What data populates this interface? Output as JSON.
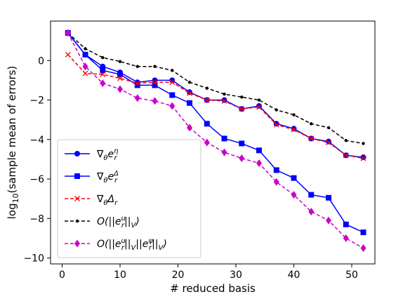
{
  "chart_data": {
    "type": "line",
    "title": "",
    "xlabel": "# reduced basis",
    "ylabel": "log10(sample mean of errors)",
    "xlim": [
      -2,
      54
    ],
    "ylim": [
      -10.3,
      2.0
    ],
    "xticks": [
      0,
      10,
      20,
      30,
      40,
      50
    ],
    "yticks": [
      0,
      -2,
      -4,
      -6,
      -8,
      -10
    ],
    "xtick_labels": [
      "0",
      "10",
      "20",
      "30",
      "40",
      "50"
    ],
    "ytick_labels": [
      "0",
      "−2",
      "−4",
      "−6",
      "−8",
      "−10"
    ],
    "legend_position": "bottom-left",
    "x": [
      1,
      4,
      7,
      10,
      13,
      16,
      19,
      22,
      25,
      28,
      31,
      34,
      37,
      40,
      43,
      46,
      49,
      52
    ],
    "series": [
      {
        "name": "∇θ e_r^η",
        "color": "#0000ff",
        "marker": "circle",
        "dash": "solid",
        "values": [
          1.4,
          0.3,
          -0.3,
          -0.6,
          -1.1,
          -1.0,
          -1.0,
          -1.6,
          -2.0,
          -2.0,
          -2.45,
          -2.3,
          -3.2,
          -3.45,
          -3.95,
          -4.1,
          -4.8,
          -4.9
        ]
      },
      {
        "name": "∇θ e_r^Δ",
        "color": "#0000ff",
        "marker": "square",
        "dash": "solid",
        "values": [
          1.4,
          0.3,
          -0.5,
          -0.7,
          -1.25,
          -1.25,
          -1.75,
          -2.15,
          -3.2,
          -3.95,
          -4.2,
          -4.55,
          -5.55,
          -5.95,
          -6.8,
          -6.95,
          -8.3,
          -8.7
        ]
      },
      {
        "name": "∇θ Δ_r",
        "color": "#ff0000",
        "marker": "x",
        "dash": "dashed",
        "values": [
          0.3,
          -0.65,
          -0.7,
          -0.9,
          -1.15,
          -1.1,
          -1.1,
          -1.65,
          -2.0,
          -2.05,
          -2.45,
          -2.35,
          -3.25,
          -3.5,
          -3.95,
          -4.15,
          -4.8,
          -4.95
        ]
      },
      {
        "name": "O(||e_r^u||_V)",
        "color": "#000000",
        "marker": "dot",
        "dash": "dashed",
        "values": [
          1.4,
          0.6,
          0.15,
          -0.05,
          -0.3,
          -0.3,
          -0.5,
          -1.1,
          -1.4,
          -1.7,
          -1.85,
          -2.0,
          -2.5,
          -2.75,
          -3.2,
          -3.4,
          -4.05,
          -4.2
        ]
      },
      {
        "name": "O(||e_r^u||_V ||e_r^ψ||_V)",
        "color": "#cc00cc",
        "marker": "diamond",
        "dash": "dashed",
        "values": [
          1.4,
          -0.3,
          -1.15,
          -1.45,
          -1.9,
          -2.05,
          -2.3,
          -3.4,
          -4.15,
          -4.65,
          -4.95,
          -5.2,
          -6.15,
          -6.8,
          -7.65,
          -8.1,
          -9.0,
          -9.5
        ]
      }
    ]
  }
}
